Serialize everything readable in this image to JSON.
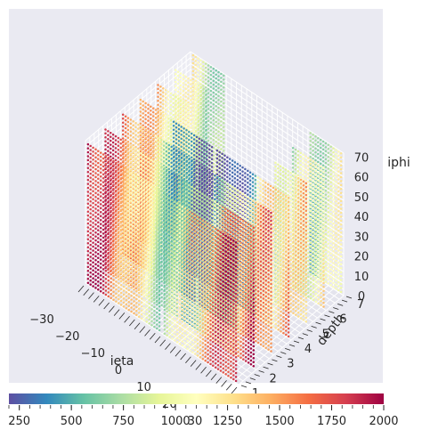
{
  "chart_data": {
    "type": "scatter",
    "projection": "3d",
    "title": "",
    "xlabel": "ieta",
    "ylabel": "depth",
    "zlabel": "iphi",
    "xlim": [
      -30,
      30
    ],
    "ylim": [
      1,
      7
    ],
    "zlim": [
      0,
      72
    ],
    "x_ticks": [
      "−30",
      "−20",
      "−10",
      "0",
      "10",
      "20",
      "30"
    ],
    "y_ticks": [
      "1",
      "2",
      "3",
      "4",
      "5",
      "6",
      "7"
    ],
    "z_ticks": [
      "0",
      "10",
      "20",
      "30",
      "40",
      "50",
      "60",
      "70"
    ],
    "grid": true,
    "colormap": "Spectral_r",
    "color_range": [
      200,
      2000
    ],
    "colorbar": {
      "orientation": "horizontal",
      "placement": "bottom",
      "ticks": [
        "250",
        "500",
        "750",
        "1000",
        "1250",
        "1500",
        "1750",
        "2000"
      ]
    },
    "series": [
      {
        "ieta_ranges": [
          [
            -29,
            -17
          ],
          [
            17,
            29
          ]
        ],
        "depths": [
          1,
          2,
          3,
          4,
          5,
          6,
          7
        ],
        "iphi_range": [
          1,
          72
        ],
        "marker": "dots",
        "color_note": "values highest at outer ieta / low depth, lower toward middle"
      },
      {
        "ieta_ranges": [
          [
            -16,
            -1
          ],
          [
            1,
            16
          ]
        ],
        "depths": [
          1,
          2,
          3,
          4
        ],
        "iphi_range": [
          1,
          72
        ],
        "marker": "dots",
        "color_note": "mostly low-to-mid values"
      }
    ]
  },
  "colors": {
    "pane_background": "#eaeaf2",
    "grid": "#ffffff",
    "text": "#262626"
  }
}
